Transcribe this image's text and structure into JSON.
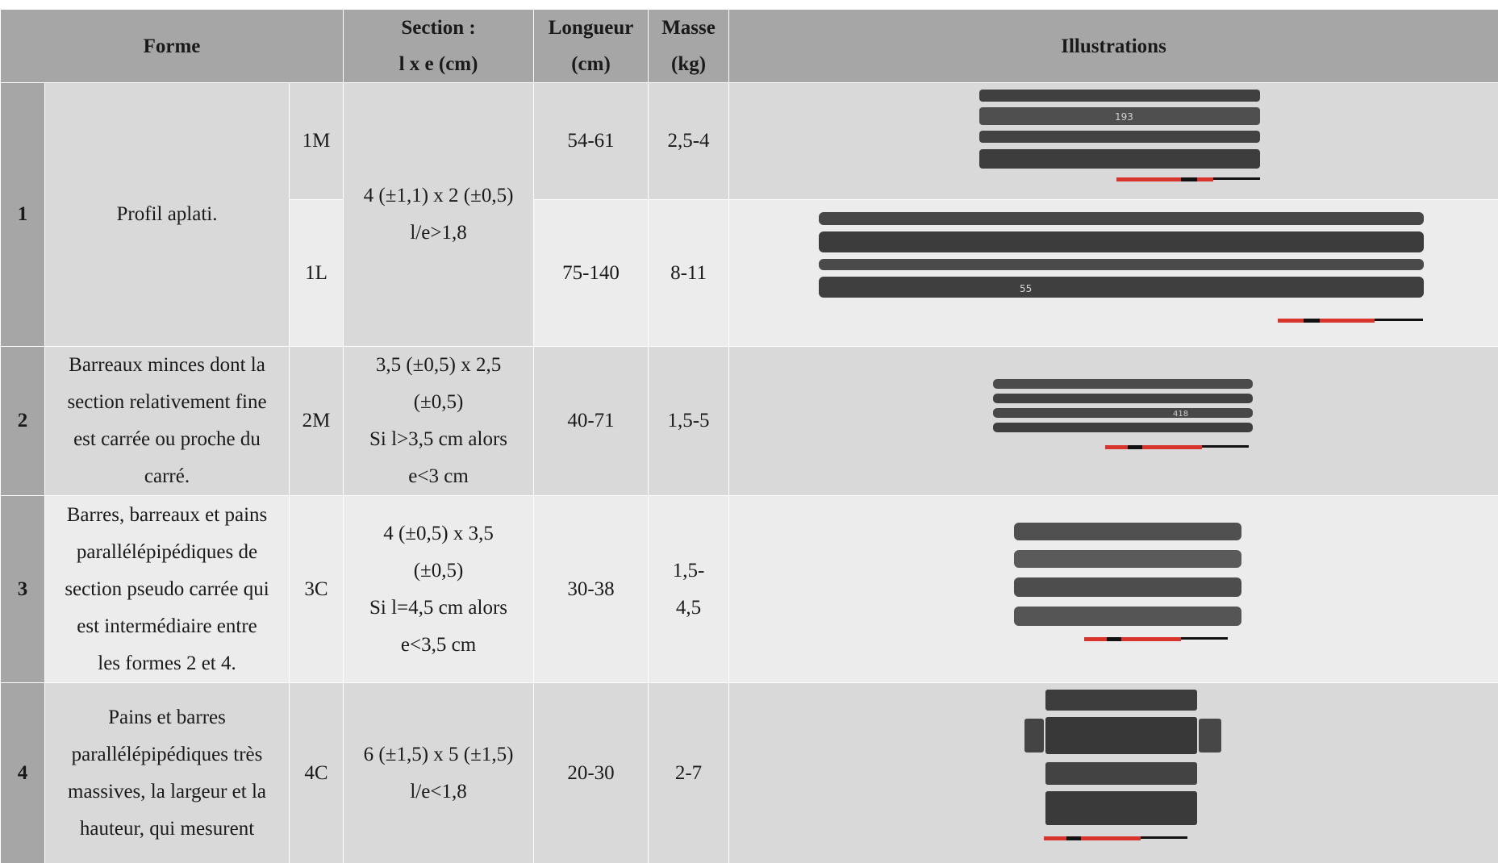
{
  "header": {
    "forme": "Forme",
    "section_l1": "Section :",
    "section_l2": "l x e (cm)",
    "longueur_l1": "Longueur",
    "longueur_l2": "(cm)",
    "masse_l1": "Masse",
    "masse_l2": "(kg)",
    "illustrations": "Illustrations"
  },
  "rows": [
    {
      "num": "1",
      "description": "Profil aplati.",
      "section_l1": "4 (±1,1) x 2 (±0,5)",
      "section_l2": "l/e>1,8",
      "sub": [
        {
          "code": "1M",
          "longueur": "54-61",
          "masse": "2,5-4",
          "photo_label": "1M bars",
          "marking": "193"
        },
        {
          "code": "1L",
          "longueur": "75-140",
          "masse": "8-11",
          "photo_label": "1L bars",
          "marking": "55"
        }
      ]
    },
    {
      "num": "2",
      "description": [
        "Barreaux minces dont la",
        "section relativement fine",
        "est carrée ou proche du",
        "carré."
      ],
      "code": "2M",
      "section": [
        "3,5 (±0,5) x 2,5",
        "(±0,5)",
        "Si l>3,5 cm alors",
        "e<3 cm"
      ],
      "longueur": "40-71",
      "masse": "1,5-5",
      "marking": "418"
    },
    {
      "num": "3",
      "description": [
        "Barres, barreaux et pains",
        "parallélépipédiques de",
        "section pseudo carrée qui",
        "est intermédiaire entre",
        "les formes 2 et 4."
      ],
      "code": "3C",
      "section": [
        "4 (±0,5) x 3,5",
        "(±0,5)",
        "Si l=4,5 cm alors",
        "e<3,5 cm"
      ],
      "longueur": "30-38",
      "masse": [
        "1,5-",
        "4,5"
      ]
    },
    {
      "num": "4",
      "description": [
        "Pains et barres",
        "parallélépipédiques très",
        "massives, la largeur et la",
        "hauteur, qui mesurent"
      ],
      "code": "4C",
      "section": [
        "6 (±1,5) x 5 (±1,5)",
        "l/e<1,8"
      ],
      "longueur": "20-30",
      "masse": "2-7"
    }
  ],
  "colors": {
    "header_bg": "#a6a6a6",
    "row_dark": "#d9d9d9",
    "row_light": "#ececec",
    "scale_red": "#d9342b"
  }
}
